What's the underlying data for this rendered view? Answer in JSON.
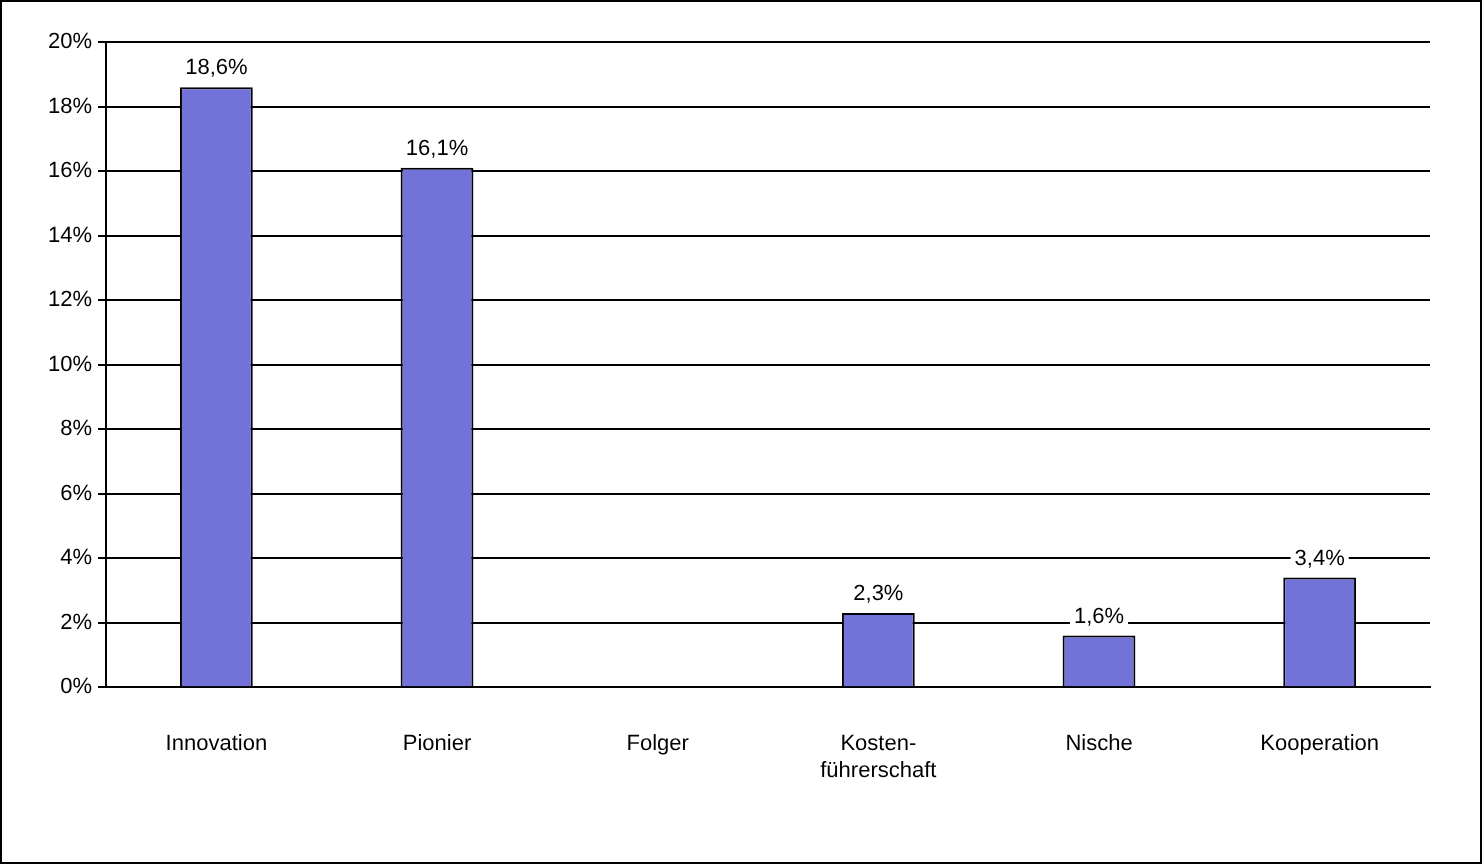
{
  "chart_data": {
    "type": "bar",
    "categories": [
      "Innovation",
      "Pionier",
      "Folger",
      "Kosten-führerschaft",
      "Nische",
      "Kooperation"
    ],
    "values": [
      18.6,
      16.1,
      0,
      2.3,
      1.6,
      3.4
    ],
    "value_labels": [
      "18,6%",
      "16,1%",
      null,
      "2,3%",
      "1,6%",
      "3,4%"
    ],
    "color": "#7272d8",
    "ylim": [
      0,
      20
    ],
    "yticks": [
      {
        "value": 0,
        "label": "0%"
      },
      {
        "value": 2,
        "label": "2%"
      },
      {
        "value": 4,
        "label": "4%"
      },
      {
        "value": 6,
        "label": "6%"
      },
      {
        "value": 8,
        "label": "8%"
      },
      {
        "value": 10,
        "label": "10%"
      },
      {
        "value": 12,
        "label": "12%"
      },
      {
        "value": 14,
        "label": "14%"
      },
      {
        "value": 16,
        "label": "16%"
      },
      {
        "value": 18,
        "label": "18%"
      },
      {
        "value": 20,
        "label": "20%"
      }
    ],
    "grid": "y",
    "legend": false
  }
}
